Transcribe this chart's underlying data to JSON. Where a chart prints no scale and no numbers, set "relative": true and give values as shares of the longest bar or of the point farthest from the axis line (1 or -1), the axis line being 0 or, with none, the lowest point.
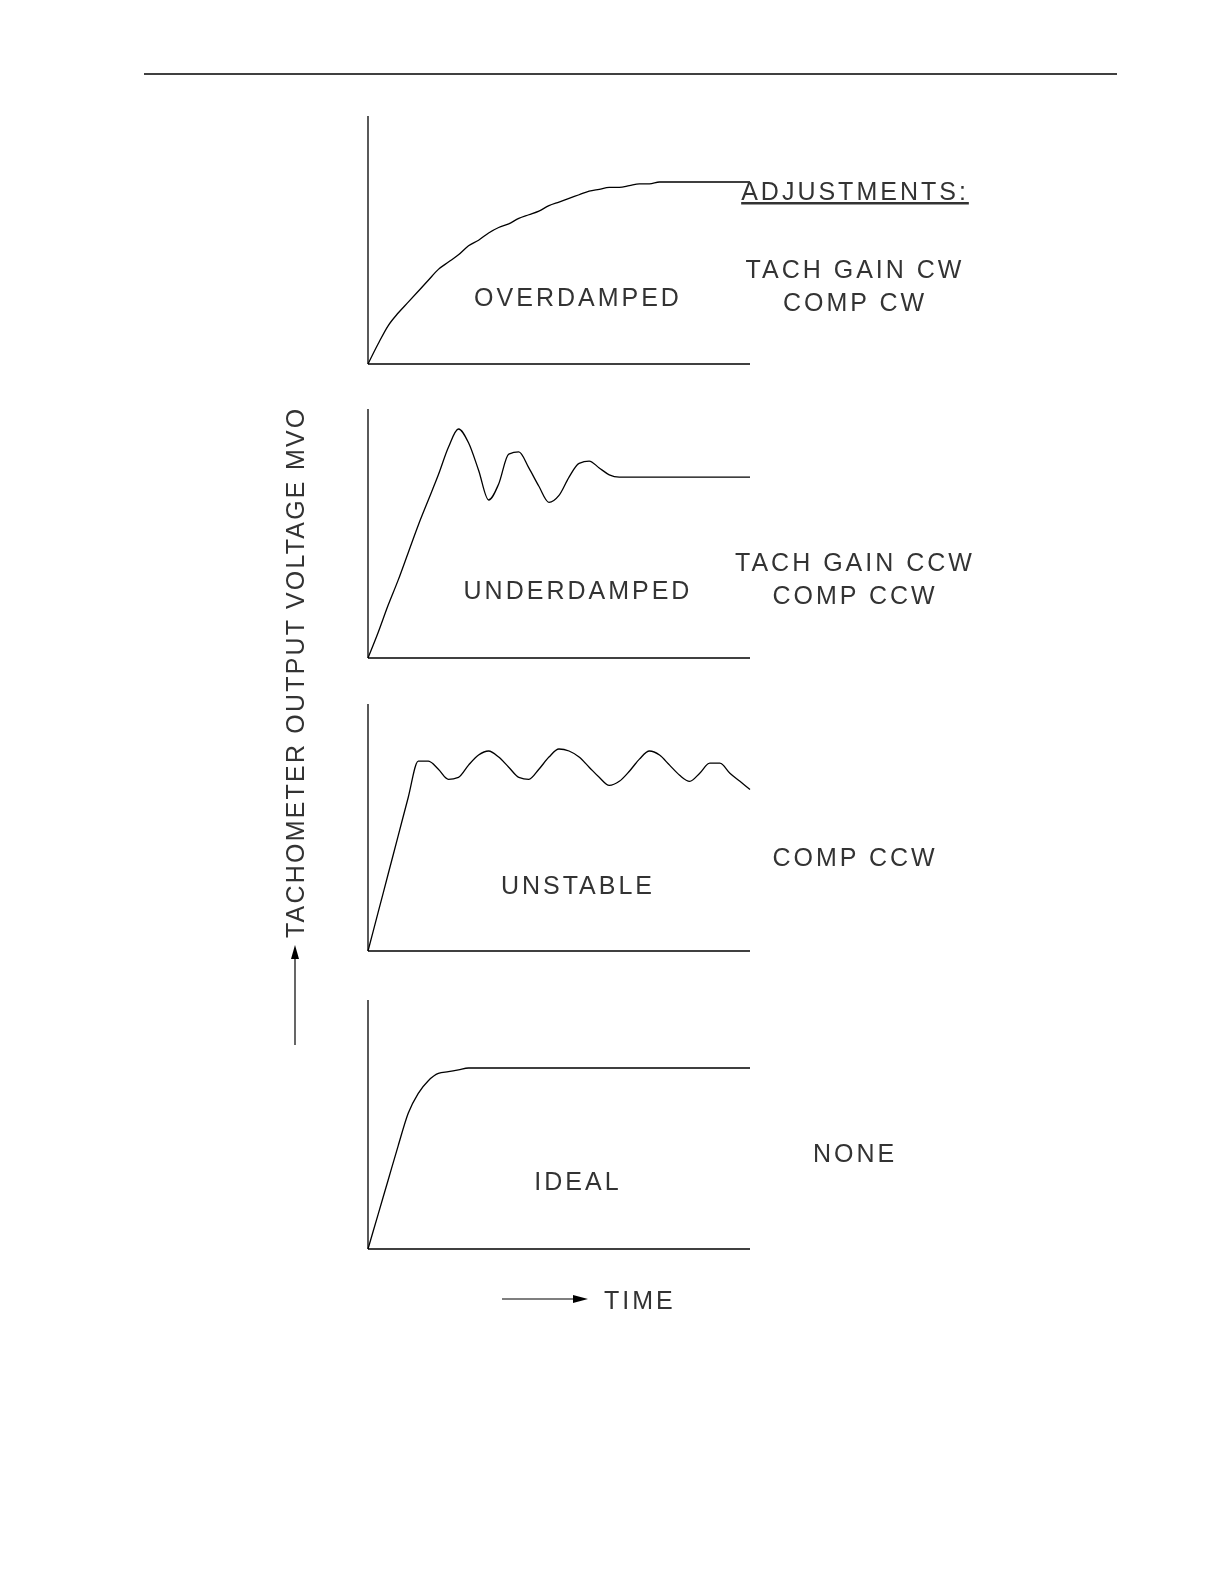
{
  "chart_data": [
    {
      "type": "line",
      "relative": true,
      "ylabel": "TACHOMETER OUTPUT VOLTAGE MVO",
      "categories": [
        null,
        null,
        null,
        null,
        null,
        null,
        null,
        null,
        null,
        null,
        null,
        null,
        null,
        null,
        null,
        null,
        null,
        null,
        null,
        null,
        null,
        null,
        null,
        null,
        null,
        null,
        null,
        null,
        null,
        null,
        null,
        null,
        null,
        null,
        null,
        null,
        null,
        null,
        null
      ],
      "series": [
        {
          "color": "#000000",
          "values": [
            0,
            0.11,
            0.21,
            0.28,
            0.34,
            0.4,
            0.46,
            0.52,
            0.56,
            0.6,
            0.65,
            0.68,
            0.72,
            0.75,
            0.77,
            0.8,
            0.82,
            0.84,
            0.87,
            0.89,
            0.91,
            0.93,
            0.95,
            0.96,
            0.97,
            0.97,
            0.98,
            0.99,
            0.99,
            1,
            1,
            1,
            1,
            1,
            1,
            1,
            1,
            1,
            1
          ]
        }
      ],
      "annotations": [
        "OVERDAMPED",
        "ADJUSTMENTS:",
        "TACH GAIN CW",
        "COMP CW"
      ]
    },
    {
      "type": "line",
      "relative": true,
      "categories": [
        null,
        null,
        null,
        null,
        null,
        null,
        null,
        null,
        null,
        null,
        null,
        null,
        null,
        null,
        null,
        null,
        null,
        null,
        null,
        null,
        null,
        null,
        null,
        null,
        null,
        null,
        null,
        null,
        null,
        null,
        null,
        null,
        null,
        null,
        null,
        null,
        null,
        null,
        null
      ],
      "series": [
        {
          "color": "#000000",
          "values": [
            0,
            0.11,
            0.23,
            0.34,
            0.46,
            0.58,
            0.69,
            0.8,
            0.92,
            1,
            0.94,
            0.82,
            0.69,
            0.76,
            0.89,
            0.9,
            0.83,
            0.75,
            0.68,
            0.71,
            0.79,
            0.85,
            0.86,
            0.83,
            0.8,
            0.79,
            0.79,
            0.79,
            0.79,
            0.79,
            0.79,
            0.79,
            0.79,
            0.79,
            0.79,
            0.79,
            0.79,
            0.79,
            0.79
          ]
        }
      ],
      "annotations": [
        "UNDERDAMPED",
        "TACH GAIN CCW",
        "COMP CCW"
      ]
    },
    {
      "type": "line",
      "relative": true,
      "categories": [
        null,
        null,
        null,
        null,
        null,
        null,
        null,
        null,
        null,
        null,
        null,
        null,
        null,
        null,
        null,
        null,
        null,
        null,
        null,
        null,
        null,
        null,
        null,
        null,
        null,
        null,
        null,
        null,
        null,
        null,
        null,
        null,
        null,
        null,
        null,
        null,
        null,
        null,
        null
      ],
      "series": [
        {
          "color": "#000000",
          "values": [
            0,
            0.19,
            0.38,
            0.57,
            0.76,
            0.94,
            0.94,
            0.9,
            0.85,
            0.86,
            0.92,
            0.97,
            0.99,
            0.96,
            0.91,
            0.86,
            0.85,
            0.9,
            0.96,
            1,
            0.99,
            0.96,
            0.91,
            0.86,
            0.82,
            0.84,
            0.89,
            0.95,
            0.99,
            0.97,
            0.92,
            0.87,
            0.84,
            0.88,
            0.93,
            0.93,
            0.88,
            0.84,
            0.8
          ]
        }
      ],
      "annotations": [
        "UNSTABLE",
        "COMP CCW"
      ]
    },
    {
      "type": "line",
      "relative": true,
      "xlabel": "TIME",
      "categories": [
        null,
        null,
        null,
        null,
        null,
        null,
        null,
        null,
        null,
        null,
        null,
        null,
        null,
        null,
        null,
        null,
        null,
        null,
        null,
        null,
        null,
        null,
        null,
        null,
        null,
        null,
        null,
        null,
        null,
        null,
        null,
        null,
        null,
        null,
        null,
        null,
        null,
        null,
        null
      ],
      "series": [
        {
          "color": "#000000",
          "values": [
            0,
            0.19,
            0.38,
            0.57,
            0.75,
            0.86,
            0.93,
            0.97,
            0.98,
            0.99,
            1,
            1,
            1,
            1,
            1,
            1,
            1,
            1,
            1,
            1,
            1,
            1,
            1,
            1,
            1,
            1,
            1,
            1,
            1,
            1,
            1,
            1,
            1,
            1,
            1,
            1,
            1,
            1,
            1
          ]
        }
      ],
      "annotations": [
        "IDEAL",
        "NONE"
      ]
    }
  ]
}
